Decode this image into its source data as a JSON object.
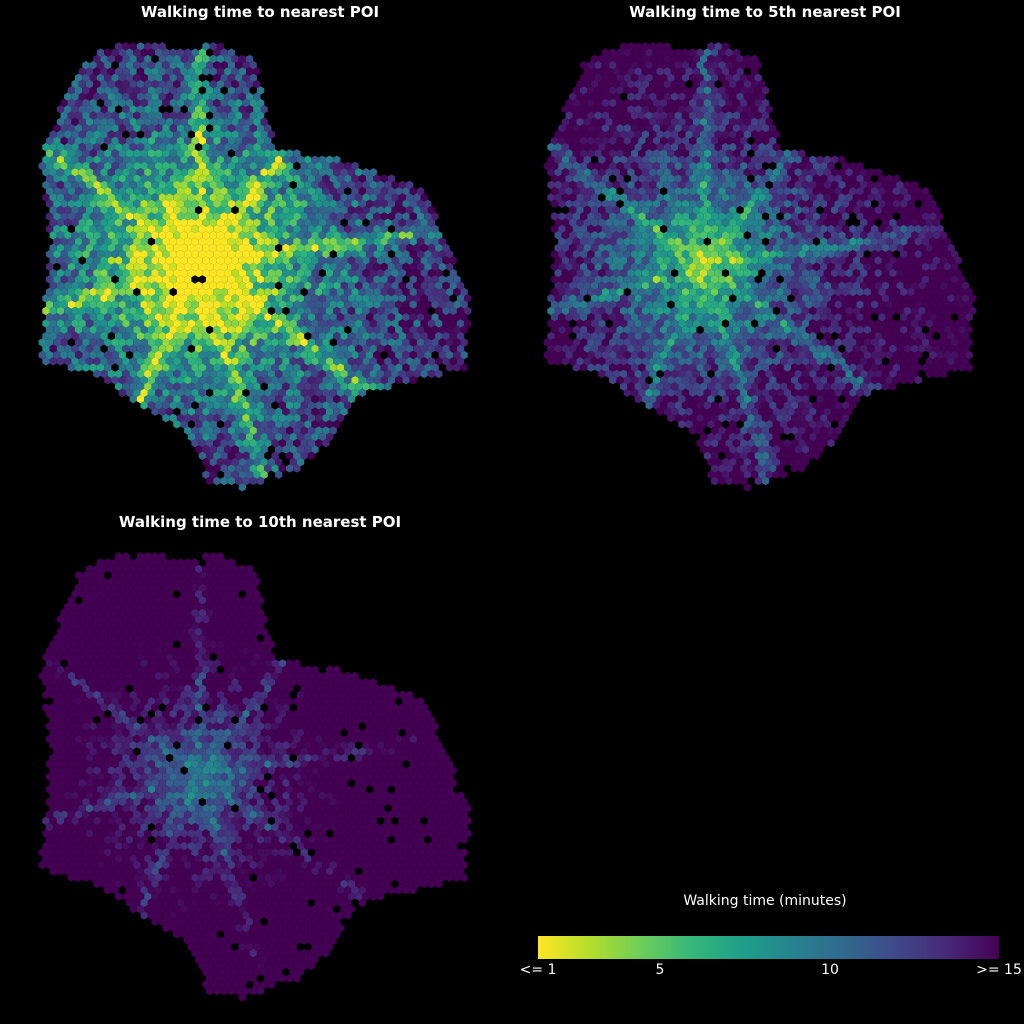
{
  "panels": [
    {
      "id": "nearest",
      "title": "Walking time to nearest POI",
      "level": 0.0
    },
    {
      "id": "fifth",
      "title": "Walking time to 5th nearest POI",
      "level": 0.5
    },
    {
      "id": "tenth",
      "title": "Walking time to 10th nearest POI",
      "level": 0.85
    }
  ],
  "legend": {
    "title": "Walking time (minutes)",
    "ticks": [
      {
        "label": "<= 1",
        "value": 1
      },
      {
        "label": "5",
        "value": 5
      },
      {
        "label": "10",
        "value": 10
      },
      {
        "label": ">= 15",
        "value": 15
      }
    ],
    "range": [
      1,
      15
    ],
    "colormap": "viridis (reversed)",
    "colors": [
      "#fde725",
      "#b5de2b",
      "#6ece58",
      "#35b779",
      "#1f9e89",
      "#26828e",
      "#31688e",
      "#3e4989",
      "#482878",
      "#440154"
    ]
  }
}
